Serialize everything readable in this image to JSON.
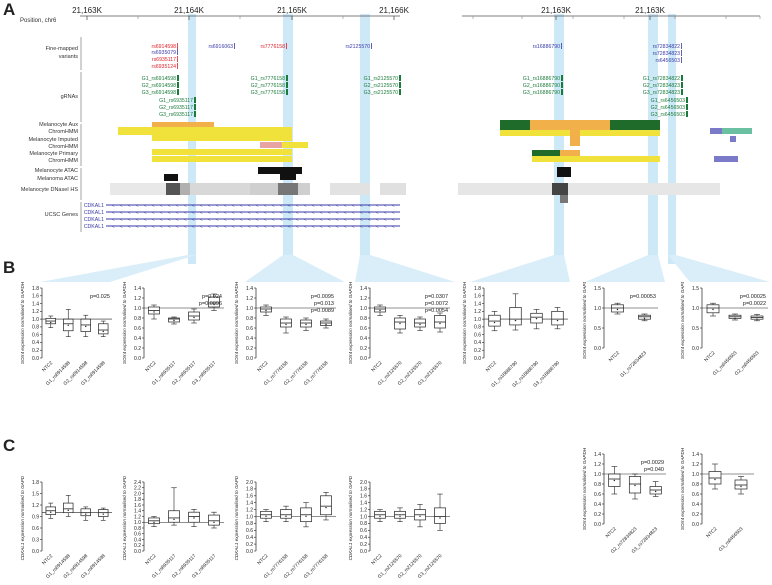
{
  "panel_labels": {
    "a": "A",
    "b": "B",
    "c": "C"
  },
  "track": {
    "position_label": "Position, chr6",
    "left_ticks": [
      "21,163K",
      "21,164K",
      "21,165K",
      "21,166K"
    ],
    "right_ticks": [
      "21,163K",
      "21,163K"
    ],
    "rows": {
      "fine_mapped": "Fine-mapped\nvariants",
      "grnas": "gRNAs",
      "mel_aux": "Melanocyte Aux",
      "chromhmm1": "ChromHMM",
      "mel_imputed": "Melanocyte Imputed",
      "chromhmm2": "ChromHMM",
      "mel_primary": "Melanocyte Primary",
      "chromhmm3": "ChromHMM",
      "mel_atac": "Melanocyte ATAC",
      "melanoma_atac": "Melanoma ATAC",
      "dnase": "Melanocyte DNaseI HS",
      "ucsc": "UCSC Genes"
    },
    "variants": [
      {
        "text": "rs6914598",
        "color": "#e0202a"
      },
      {
        "text": "rs6935079",
        "color": "#3a3aa8"
      },
      {
        "text": "rs6935117",
        "color": "#e0202a"
      },
      {
        "text": "rs6935124",
        "color": "#e0202a"
      },
      {
        "text": "rs6916063",
        "color": "#3a3aa8"
      },
      {
        "text": "rs7776158",
        "color": "#e0202a"
      },
      {
        "text": "rs2125570",
        "color": "#3a3aa8"
      },
      {
        "text": "rs16886790",
        "color": "#3a3aa8"
      },
      {
        "text": "rs72834822",
        "color": "#3a3aa8"
      },
      {
        "text": "rs72834823",
        "color": "#3a3aa8"
      },
      {
        "text": "rs6456503",
        "color": "#3a3aa8"
      }
    ],
    "grnas": [
      "G1_rs6914598",
      "G2_rs6914598",
      "G3_rs6914598",
      "G1_rs6935117",
      "G2_rs6935117",
      "G3_rs6935117",
      "G1_rs7776158",
      "G2_rs7776158",
      "G3_rs7776158",
      "G1_rs2125570",
      "G2_rs2125570",
      "G3_rs2125570",
      "G1_rs16886790",
      "G2_rs16886790",
      "G3_rs16886790",
      "G1_rs72834822",
      "G2_rs72834823",
      "G3_rs72834823",
      "G1_rs6456503",
      "G2_rs6456503",
      "G3_rs6456503"
    ],
    "genes": [
      "CDKAL1",
      "CDKAL1",
      "CDKAL1",
      "CDKAL1"
    ]
  },
  "chart_data": [
    {
      "id": "b1",
      "type": "box",
      "ylabel": "SOX4 expression normalised to GAPDH",
      "ylim": [
        0,
        1.8
      ],
      "yticks": [
        "0.0",
        "0.2",
        "0.4",
        "0.6",
        "0.8",
        "1.0",
        "1.2",
        "1.4",
        "1.6",
        "1.8"
      ],
      "categories": [
        "NTC2",
        "G1_rs6914598",
        "G2_rs6914598",
        "G3_rs6914598"
      ],
      "boxes": [
        [
          0.78,
          0.88,
          0.95,
          1.02,
          1.08
        ],
        [
          0.55,
          0.7,
          0.88,
          1.0,
          1.25
        ],
        [
          0.55,
          0.68,
          0.85,
          1.0,
          1.1
        ],
        [
          0.55,
          0.62,
          0.72,
          0.88,
          0.95
        ]
      ],
      "pvalues": [
        "p=0.025"
      ],
      "ref": 1.0
    },
    {
      "id": "b2",
      "type": "box",
      "ylabel": "SOX4 expression normalised to GAPDH",
      "ylim": [
        0,
        1.4
      ],
      "yticks": [
        "0.0",
        "0.2",
        "0.4",
        "0.6",
        "0.8",
        "1.0",
        "1.2",
        "1.4"
      ],
      "categories": [
        "NTC2",
        "G1_rs6935117",
        "G2_rs6935117",
        "G3_rs6935117"
      ],
      "boxes": [
        [
          0.78,
          0.88,
          0.95,
          1.02,
          1.06
        ],
        [
          0.68,
          0.72,
          0.78,
          0.8,
          0.82
        ],
        [
          0.7,
          0.76,
          0.84,
          0.92,
          0.98
        ],
        [
          0.95,
          1.02,
          1.1,
          1.22,
          1.28
        ]
      ],
      "pvalues": [
        "p=0.024",
        "p=0.0096"
      ],
      "ref": 1.0
    },
    {
      "id": "b3",
      "type": "box",
      "ylabel": "SOX4 expression normalised to GAPDH",
      "ylim": [
        0,
        1.4
      ],
      "yticks": [
        "0.0",
        "0.2",
        "0.4",
        "0.6",
        "0.8",
        "1.0",
        "1.2",
        "1.4"
      ],
      "categories": [
        "NTC2",
        "G1_rs7776158",
        "G2_rs7776158",
        "G3_rs7776158"
      ],
      "boxes": [
        [
          0.85,
          0.92,
          0.98,
          1.02,
          1.06
        ],
        [
          0.5,
          0.62,
          0.7,
          0.78,
          0.82
        ],
        [
          0.55,
          0.62,
          0.7,
          0.76,
          0.8
        ],
        [
          0.6,
          0.65,
          0.7,
          0.74,
          0.78
        ]
      ],
      "pvalues": [
        "p=0.0095",
        "p=0.013",
        "p=0.0089"
      ],
      "ref": 1.0
    },
    {
      "id": "b4",
      "type": "box",
      "ylabel": "SOX4 expression normalised to GAPDH",
      "ylim": [
        0,
        1.4
      ],
      "yticks": [
        "0.0",
        "0.2",
        "0.4",
        "0.6",
        "0.8",
        "1.0",
        "1.2",
        "1.4"
      ],
      "categories": [
        "NTC2",
        "G1_rs2125570",
        "G2_rs2125570",
        "G3_rs2125570"
      ],
      "boxes": [
        [
          0.85,
          0.92,
          0.98,
          1.02,
          1.06
        ],
        [
          0.5,
          0.58,
          0.72,
          0.8,
          0.85
        ],
        [
          0.55,
          0.62,
          0.7,
          0.78,
          0.82
        ],
        [
          0.52,
          0.6,
          0.72,
          0.85,
          0.9
        ]
      ],
      "pvalues": [
        "p=0.0307",
        "p=0.0072",
        "p=0.0054"
      ],
      "ref": 1.0
    },
    {
      "id": "b5",
      "type": "box",
      "ylabel": "SOX4 expression normalised to GAPDH",
      "ylim": [
        0,
        1.8
      ],
      "yticks": [
        "0.0",
        "0.2",
        "0.4",
        "0.6",
        "0.8",
        "1.0",
        "1.2",
        "1.4",
        "1.6",
        "1.8"
      ],
      "categories": [
        "NTC2",
        "G1_rs16886790",
        "G2_rs16886790",
        "G3_rs16886790"
      ],
      "boxes": [
        [
          0.7,
          0.82,
          0.95,
          1.1,
          1.2
        ],
        [
          0.72,
          0.85,
          1.0,
          1.3,
          1.65
        ],
        [
          0.75,
          0.9,
          1.05,
          1.15,
          1.25
        ],
        [
          0.75,
          0.85,
          1.0,
          1.2,
          1.3
        ]
      ],
      "pvalues": [],
      "ref": 1.0
    },
    {
      "id": "b6",
      "type": "box",
      "ylabel": "SOX4 expression normalised to GAPDH",
      "ylim": [
        0,
        1.5
      ],
      "yticks": [
        "0.0",
        "0.5",
        "1.0",
        "1.5"
      ],
      "categories": [
        "NTC2",
        "G1_rs72834823"
      ],
      "boxes": [
        [
          0.85,
          0.9,
          1.0,
          1.08,
          1.12
        ],
        [
          0.68,
          0.72,
          0.78,
          0.82,
          0.85
        ]
      ],
      "pvalues": [
        "p=0.00053"
      ],
      "ref": 1.0
    },
    {
      "id": "b7",
      "type": "box",
      "ylabel": "SOX4 expression normalised to GAPDH",
      "ylim": [
        0,
        1.5
      ],
      "yticks": [
        "0.0",
        "0.5",
        "1.0",
        "1.5"
      ],
      "categories": [
        "NTC2",
        "G1_rs6456503",
        "G2_rs6456503"
      ],
      "boxes": [
        [
          0.8,
          0.88,
          1.0,
          1.08,
          1.12
        ],
        [
          0.7,
          0.74,
          0.78,
          0.82,
          0.85
        ],
        [
          0.68,
          0.72,
          0.76,
          0.8,
          0.84
        ]
      ],
      "pvalues": [
        "p=0.00025",
        "p=0.0022"
      ],
      "ref": 1.0
    },
    {
      "id": "b8",
      "type": "box",
      "ylabel": "SOX4 expression normalised to GAPDH",
      "ylim": [
        0,
        1.4
      ],
      "yticks": [
        "0.0",
        "0.2",
        "0.4",
        "0.6",
        "0.8",
        "1.0",
        "1.2",
        "1.4"
      ],
      "categories": [
        "NTC2",
        "G2_rs72834823",
        "G3_rs72834823"
      ],
      "boxes": [
        [
          0.6,
          0.75,
          0.9,
          1.0,
          1.15
        ],
        [
          0.5,
          0.62,
          0.8,
          0.95,
          1.0
        ],
        [
          0.55,
          0.6,
          0.68,
          0.75,
          0.85
        ]
      ],
      "pvalues": [
        "p=0.0029",
        "p=0.040"
      ],
      "ref": 1.0
    },
    {
      "id": "b9",
      "type": "box",
      "ylabel": "SOX4 expression normalised to GAPDH",
      "ylim": [
        0,
        1.4
      ],
      "yticks": [
        "0.0",
        "0.2",
        "0.4",
        "0.6",
        "0.8",
        "1.0",
        "1.2",
        "1.4"
      ],
      "categories": [
        "NTC2",
        "G3_rs6456503"
      ],
      "boxes": [
        [
          0.7,
          0.8,
          0.92,
          1.05,
          1.2
        ],
        [
          0.6,
          0.7,
          0.78,
          0.88,
          0.95
        ]
      ],
      "pvalues": [],
      "ref": 1.0
    },
    {
      "id": "c1",
      "type": "box",
      "ylabel": "CDKAL1 expression normalised to GAPDH",
      "ylim": [
        0,
        1.8
      ],
      "yticks": [
        "0.0",
        "0.3",
        "0.6",
        "0.9",
        "1.2",
        "1.5",
        "1.8"
      ],
      "categories": [
        "NTC2",
        "G1_rs6914598",
        "G2_rs6914598",
        "G3_rs6914598"
      ],
      "boxes": [
        [
          0.85,
          0.95,
          1.05,
          1.15,
          1.25
        ],
        [
          0.9,
          1.0,
          1.1,
          1.25,
          1.45
        ],
        [
          0.8,
          0.92,
          1.0,
          1.1,
          1.15
        ],
        [
          0.8,
          0.9,
          1.0,
          1.08,
          1.12
        ]
      ],
      "pvalues": [],
      "ref": 1.0
    },
    {
      "id": "c2",
      "type": "box",
      "ylabel": "CDKAL1 expression normalised to GAPDH",
      "ylim": [
        0,
        2.4
      ],
      "yticks": [
        "0.0",
        "0.2",
        "0.4",
        "0.6",
        "0.8",
        "1.0",
        "1.2",
        "1.4",
        "1.6",
        "1.8",
        "2.0",
        "2.2",
        "2.4"
      ],
      "categories": [
        "NTC2",
        "G1_rs6935117",
        "G2_rs6935117",
        "G3_rs6935117"
      ],
      "boxes": [
        [
          0.85,
          0.95,
          1.05,
          1.15,
          1.2
        ],
        [
          0.9,
          1.0,
          1.15,
          1.4,
          2.2
        ],
        [
          0.85,
          1.0,
          1.2,
          1.35,
          1.45
        ],
        [
          0.8,
          0.9,
          1.05,
          1.25,
          1.35
        ]
      ],
      "pvalues": [],
      "ref": 1.0
    },
    {
      "id": "c3",
      "type": "box",
      "ylabel": "CDKAL1 expression normalised to GAPDH",
      "ylim": [
        0,
        2.0
      ],
      "yticks": [
        "0.0",
        "0.2",
        "0.4",
        "0.6",
        "0.8",
        "1.0",
        "1.2",
        "1.4",
        "1.6",
        "1.8",
        "2.0"
      ],
      "categories": [
        "NTC2",
        "G1_rs7776158",
        "G2_rs7776158",
        "G3_rs7776158"
      ],
      "boxes": [
        [
          0.85,
          0.95,
          1.05,
          1.15,
          1.2
        ],
        [
          0.85,
          0.95,
          1.05,
          1.2,
          1.3
        ],
        [
          0.7,
          0.85,
          1.05,
          1.25,
          1.4
        ],
        [
          0.9,
          1.05,
          1.3,
          1.6,
          1.7
        ]
      ],
      "pvalues": [],
      "ref": 1.0
    },
    {
      "id": "c4",
      "type": "box",
      "ylabel": "CDKAL1 expression normalised to GAPDH",
      "ylim": [
        0,
        2.0
      ],
      "yticks": [
        "0.0",
        "0.2",
        "0.4",
        "0.6",
        "0.8",
        "1.0",
        "1.2",
        "1.4",
        "1.6",
        "1.8",
        "2.0"
      ],
      "categories": [
        "NTC2",
        "G1_rs2125570",
        "G2_rs2125570",
        "G3_rs2125570"
      ],
      "boxes": [
        [
          0.85,
          0.95,
          1.05,
          1.15,
          1.2
        ],
        [
          0.85,
          0.95,
          1.05,
          1.15,
          1.25
        ],
        [
          0.7,
          0.9,
          1.05,
          1.2,
          1.35
        ],
        [
          0.6,
          0.8,
          1.0,
          1.25,
          1.65
        ]
      ],
      "pvalues": [],
      "ref": 1.0
    }
  ]
}
